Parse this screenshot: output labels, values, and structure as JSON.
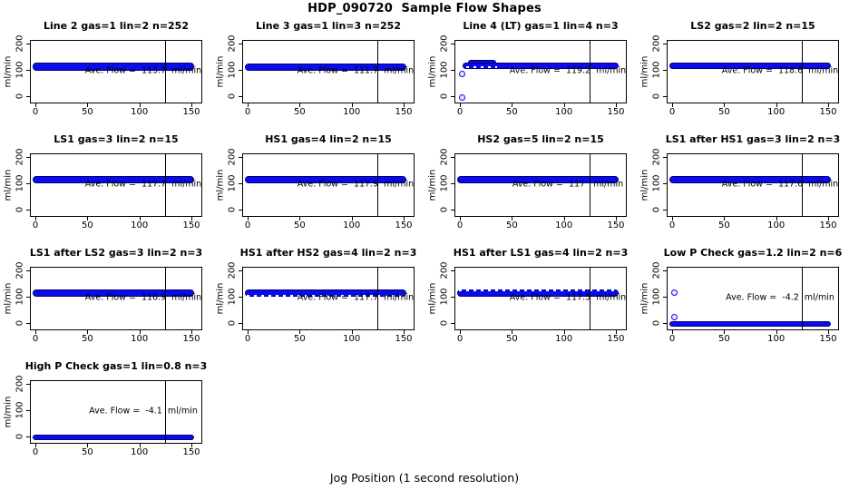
{
  "header": {
    "title": "HDP_090720  Sample Flow Shapes"
  },
  "footer": {
    "xlabel": "Jog Position (1 second resolution)"
  },
  "colors": {
    "background": "#ffffff",
    "axis": "#000000",
    "point_fill": "#0b0bec",
    "point_edge": "#00007a",
    "text": "#000000"
  },
  "chart_data": {
    "type": "scatter",
    "title": "HDP_090720  Sample Flow Shapes",
    "xlabel": "Jog Position (1 second resolution)",
    "ylabel": "ml/min",
    "xticks": [
      0,
      50,
      100,
      150
    ],
    "yticks": [
      0,
      100,
      200
    ],
    "xlim": [
      -5,
      160
    ],
    "ylim": [
      -28,
      214
    ],
    "grid": false,
    "vline_x": 125,
    "layout": "4 columns x 4 rows, 13 panels",
    "panels": [
      {
        "title": "Line 2 gas=1 lin=2 n=252",
        "gas": 1,
        "lin": 2,
        "n": 252,
        "ave_flow": 113.7,
        "annotation": "Ave. Flow =  113.7  ml/min",
        "band": {
          "x0": -3,
          "x1": 153,
          "y_lo": 97,
          "y_hi": 126
        },
        "outliers": []
      },
      {
        "title": "Line 3 gas=1 lin=3 n=252",
        "gas": 1,
        "lin": 3,
        "n": 252,
        "ave_flow": 111.7,
        "annotation": "Ave. Flow =  111.7  ml/min",
        "band": {
          "x0": -3,
          "x1": 153,
          "y_lo": 96,
          "y_hi": 124
        },
        "outliers": []
      },
      {
        "title": "Line 4 (LT) gas=1 lin=4 n=3",
        "gas": 1,
        "lin": 4,
        "n": 3,
        "ave_flow": 119.2,
        "annotation": "Ave. Flow =  119.2  ml/min",
        "band": {
          "x0": 3,
          "x1": 153,
          "y_lo": 102,
          "y_hi": 129
        },
        "cap": {
          "x0": 8,
          "x1": 33,
          "y_lo": 126,
          "y_hi": 137
        },
        "dash": {
          "x0": 6,
          "x1": 36,
          "y": 111
        },
        "outliers": [
          {
            "x": 2,
            "y": -5
          },
          {
            "x": 2,
            "y": 85
          }
        ]
      },
      {
        "title": "LS2 gas=2 lin=2 n=15",
        "gas": 2,
        "lin": 2,
        "n": 15,
        "ave_flow": 118.6,
        "annotation": "Ave. Flow =  118.6  ml/min",
        "band": {
          "x0": -3,
          "x1": 153,
          "y_lo": 102,
          "y_hi": 129
        },
        "outliers": []
      },
      {
        "title": "LS1 gas=3 lin=2 n=15",
        "gas": 3,
        "lin": 2,
        "n": 15,
        "ave_flow": 117.7,
        "annotation": "Ave. Flow =  117.7  ml/min",
        "band": {
          "x0": -3,
          "x1": 153,
          "y_lo": 101,
          "y_hi": 128
        },
        "outliers": []
      },
      {
        "title": "HS1 gas=4 lin=2 n=15",
        "gas": 4,
        "lin": 2,
        "n": 15,
        "ave_flow": 117.9,
        "annotation": "Ave. Flow =  117.9  ml/min",
        "band": {
          "x0": -3,
          "x1": 153,
          "y_lo": 101,
          "y_hi": 128
        },
        "outliers": []
      },
      {
        "title": "HS2 gas=5 lin=2 n=15",
        "gas": 5,
        "lin": 2,
        "n": 15,
        "ave_flow": 117,
        "annotation": "Ave. Flow =  117   ml/min",
        "band": {
          "x0": -3,
          "x1": 153,
          "y_lo": 101,
          "y_hi": 128
        },
        "outliers": []
      },
      {
        "title": "LS1 after HS1 gas=3 lin=2 n=3",
        "gas": 3,
        "lin": 2,
        "n": 3,
        "ave_flow": 117.6,
        "annotation": "Ave. Flow =  117.6  ml/min",
        "band": {
          "x0": -3,
          "x1": 153,
          "y_lo": 101,
          "y_hi": 128
        },
        "outliers": []
      },
      {
        "title": "LS1 after LS2 gas=3 lin=2 n=3",
        "gas": 3,
        "lin": 2,
        "n": 3,
        "ave_flow": 116.9,
        "annotation": "Ave. Flow =  116.9  ml/min",
        "band": {
          "x0": -3,
          "x1": 153,
          "y_lo": 100,
          "y_hi": 127
        },
        "outliers": []
      },
      {
        "title": "HS1 after HS2 gas=4 lin=2 n=3",
        "gas": 4,
        "lin": 2,
        "n": 3,
        "ave_flow": 117.7,
        "annotation": "Ave. Flow =  117.7  ml/min",
        "band": {
          "x0": -3,
          "x1": 153,
          "y_lo": 101,
          "y_hi": 128
        },
        "dash": {
          "x0": -1,
          "x1": 152,
          "y": 104
        },
        "outliers": []
      },
      {
        "title": "HS1 after LS1 gas=4 lin=2 n=3",
        "gas": 4,
        "lin": 2,
        "n": 3,
        "ave_flow": 117.5,
        "annotation": "Ave. Flow =  117.5  ml/min",
        "band": {
          "x0": -3,
          "x1": 153,
          "y_lo": 101,
          "y_hi": 128
        },
        "dash": {
          "x0": -1,
          "x1": 152,
          "y": 125
        },
        "outliers": []
      },
      {
        "title": "Low P Check gas=1.2 lin=2 n=6",
        "gas": 1.2,
        "lin": 2,
        "n": 6,
        "ave_flow": -4.2,
        "annotation": "Ave. Flow =  -4.2  ml/min",
        "band": {
          "x0": -3,
          "x1": 153,
          "y_lo": -15,
          "y_hi": 7
        },
        "outliers": [
          {
            "x": 2,
            "y": 115
          },
          {
            "x": 2,
            "y": 22
          }
        ]
      },
      {
        "title": "High P Check gas=1 lin=0.8 n=3",
        "gas": 1,
        "lin": 0.8,
        "n": 3,
        "ave_flow": -4.1,
        "annotation": "Ave. Flow =  -4.1  ml/min",
        "band": {
          "x0": -3,
          "x1": 153,
          "y_lo": -15,
          "y_hi": 7
        },
        "outliers": []
      }
    ]
  }
}
